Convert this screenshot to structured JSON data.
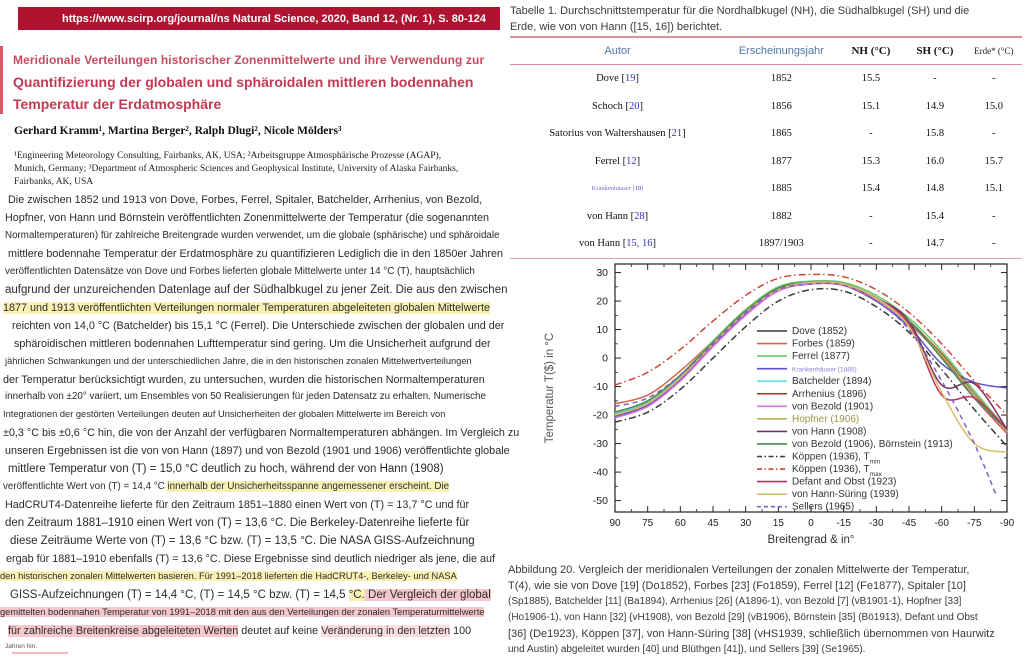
{
  "page": {
    "header": {
      "url": "https://www.scirp.org/journal/ns",
      "journal": "Natural Science, 2020, Band 12, (Nr. 1), S. 80-124"
    },
    "title_lines": [
      "Meridionale Verteilungen historischer Zonenmittelwerte und ihre Verwendung zur",
      "Quantifizierung der globalen und sphäroidalen mittleren bodennahen",
      "Temperatur der Erdatmosphäre"
    ],
    "authors": "Gerhard Kramm¹, Martina Berger², Ralph Dlugi², Nicole Mölders³",
    "affiliation_lines": [
      "¹Engineering Meteorology Consulting, Fairbanks, AK, USA; ²Arbeitsgruppe Atmosphärische Prozesse (AGAP),",
      "Munich, Germany; ³Department of Atmospheric Sciences and Geophysical Institute, University of Alaska Fairbanks,",
      "Fairbanks, AK, USA"
    ],
    "body_lines": [
      {
        "size": "m",
        "ind": 8,
        "segments": [
          {
            "t": "Die zwischen 1852 und 1913 von Dove, Forbes, Ferrel, Spitaler, Batchelder, Arrhenius, von Bezold,"
          }
        ]
      },
      {
        "size": "m",
        "ind": 5,
        "segments": [
          {
            "t": "Hopfner, von Hann und Börnstein veröffentlichten Zonenmittelwerte der Temperatur (die sogenannten"
          }
        ]
      },
      {
        "size": "s",
        "ind": 5,
        "segments": [
          {
            "t": "Normaltemperaturen) für zahlreiche Breitengrade wurden verwendet, um die globale (sphärische) und sphäroidale"
          }
        ]
      },
      {
        "size": "m",
        "ind": 8,
        "segments": [
          {
            "t": "mittlere bodennahe Temperatur der Erdatmosphäre zu quantifizieren Lediglich die in den 1850er Jahren"
          }
        ]
      },
      {
        "size": "s",
        "ind": 5,
        "segments": [
          {
            "t": "veröffentlichten Datensätze von Dove und Forbes lieferten globale Mittelwerte unter 14 °C (T), hauptsächlich"
          }
        ]
      },
      {
        "size": "l",
        "ind": 5,
        "segments": [
          {
            "t": "aufgrund der unzureichenden Datenlage auf der Südhalbkugel zu jener Zeit. Die aus den zwischen"
          }
        ]
      },
      {
        "size": "m",
        "ind": 3,
        "segments": [
          {
            "t": "1877 und 1913 veröffentlichten Verteilungen normaler Temperaturen abgeleiteten globalen Mittelwerte",
            "hl": "y"
          }
        ]
      },
      {
        "size": "m",
        "ind": 12,
        "segments": [
          {
            "t": "reichten von 14,0 °C (Batchelder) bis 15,1 °C (Ferrel). Die Unterschiede zwischen der globalen und der"
          }
        ]
      },
      {
        "size": "m",
        "ind": 14,
        "segments": [
          {
            "t": "sphäroidischen mittleren bodennahen Lufttemperatur sind gering. Um die Unsicherheit aufgrund der"
          }
        ]
      },
      {
        "size": "xs",
        "ind": 5,
        "segments": [
          {
            "t": "jährlichen Schwankungen und der unterschiedlichen Jahre, die in den historischen zonalen Mittelwertverteilungen"
          }
        ]
      },
      {
        "size": "m",
        "ind": 3,
        "segments": [
          {
            "t": "der Temperatur berücksichtigt wurden, zu untersuchen, wurden die historischen Normaltemperaturen"
          }
        ]
      },
      {
        "size": "s",
        "ind": 5,
        "segments": [
          {
            "t": "innerhalb von ±20° variiert, um Ensembles von 50 Realisierungen für jeden Datensatz zu erhalten. Numerische"
          }
        ]
      },
      {
        "size": "xs",
        "ind": 3,
        "segments": [
          {
            "t": "Integrationen der gestörten Verteilungen deuten auf Unsicherheiten der globalen Mittelwerte im Bereich von"
          }
        ]
      },
      {
        "size": "m",
        "ind": 3,
        "segments": [
          {
            "t": "±0,3 °C bis ±0,6 °C hin, die von der Anzahl der verfügbaren Normaltemperaturen abhängen. Im Vergleich zu"
          }
        ]
      },
      {
        "size": "m",
        "ind": 5,
        "segments": [
          {
            "t": "unseren Ergebnissen ist die von von Hann (1897) und von Bezold (1901 und 1906) veröffentlichte globale"
          }
        ]
      },
      {
        "size": "l",
        "ind": 8,
        "segments": [
          {
            "t": "mittlere Temperatur von (T) = 15,0 °C deutlich zu hoch, während der von Hann (1908)"
          }
        ]
      },
      {
        "size": "s",
        "ind": 3,
        "segments": [
          {
            "t": "veröffentlichte Wert von (T) = 14,4 °C "
          },
          {
            "t": "innerhalb der Unsicherheitsspanne angemessener erscheint. Die",
            "hl": "y"
          }
        ]
      },
      {
        "size": "m",
        "ind": 5,
        "segments": [
          {
            "t": "HadCRUT4-Datenreihe lieferte für den Zeitraum 1851–1880 einen Wert von (T) = 13,7 °C und für"
          }
        ]
      },
      {
        "size": "l",
        "ind": 5,
        "segments": [
          {
            "t": "den Zeitraum 1881–1910 einen Wert von (T) = 13,6 °C. Die Berkeley-Datenreihe lieferte für"
          }
        ]
      },
      {
        "size": "l",
        "ind": 10,
        "segments": [
          {
            "t": "diese Zeiträume Werte von (T) = 13,6 °C bzw. (T) = 13,5 °C. Die NASA GISS-Aufzeichnung"
          }
        ]
      },
      {
        "size": "m",
        "ind": 6,
        "segments": [
          {
            "t": "ergab für 1881–1910 ebenfalls (T) = 13,6 °C. Diese Ergebnisse sind deutlich niedriger als jene, die auf"
          }
        ]
      },
      {
        "size": "xs",
        "ind": 0,
        "segments": [
          {
            "t": "den historischen zonalen Mittelwerten basieren. Für 1991–2018 lieferten die HadCRUT4-, Berkeley- und NASA",
            "hl": "y"
          }
        ]
      },
      {
        "size": "l",
        "ind": 10,
        "segments": [
          {
            "t": "GISS-Aufzeichnungen (T) = 14,4 °C, (T) = 14,5 °C bzw. (T) = 14,5 "
          },
          {
            "t": "°C.",
            "hl": "y"
          },
          {
            "t": " Der Vergleich der global",
            "hl": "p"
          }
        ]
      },
      {
        "size": "xs",
        "ind": 0,
        "segments": [
          {
            "t": "gemittelten bodennahen Temperatur von 1991–2018 mit den aus den Verteilungen der zonalen Temperaturmittelwerte",
            "hl": "p"
          }
        ]
      },
      {
        "size": "m",
        "ind": 8,
        "segments": [
          {
            "t": "für zahlreiche Breitenkreise abgeleiteten Werten",
            "hl": "p"
          },
          {
            "t": " deutet auf keine "
          },
          {
            "t": "Veränderung in den letzten",
            "hl": "pl"
          },
          {
            "t": " 100"
          }
        ]
      },
      {
        "size": "tiny",
        "ind": 5,
        "segments": [
          {
            "t": "Jahren hin."
          }
        ]
      }
    ]
  },
  "table": {
    "caption_lines": [
      "Tabelle 1. Durchschnittstemperatur für die Nordhalbkugel (NH), die Südhalbkugel (SH) und die",
      "Erde, wie von von Hann ([15, 16]) berichtet."
    ],
    "columns": [
      "Autor",
      "Erscheinungsjahr",
      "NH (°C)",
      "SH (°C)",
      "Erde* (°C)"
    ],
    "rows": [
      {
        "name": "Dove",
        "ref": "19",
        "year": "1852",
        "nh": "15.5",
        "sh": "-",
        "earth": "-"
      },
      {
        "name": "Schoch",
        "ref": "20",
        "year": "1856",
        "nh": "15.1",
        "sh": "14.9",
        "earth": "15.0"
      },
      {
        "name": "Satorius von Waltershausen",
        "ref": "21",
        "year": "1865",
        "nh": "-",
        "sh": "15.8",
        "earth": "-"
      },
      {
        "name": "Ferrel",
        "ref": "12",
        "year": "1877",
        "nh": "15.3",
        "sh": "16.0",
        "earth": "15.7"
      },
      {
        "name": "Krankenhäuser",
        "ref": "10",
        "year": "1885",
        "nh": "15.4",
        "sh": "14.8",
        "earth": "15.1",
        "small": true
      },
      {
        "name": "von Hann",
        "ref": "28",
        "year": "1882",
        "nh": "-",
        "sh": "15.4",
        "earth": "-"
      },
      {
        "name": "von Hann",
        "ref": "15, 16",
        "year": "1897/1903",
        "nh": "-",
        "sh": "14.7",
        "earth": "-"
      }
    ]
  },
  "chart_data": {
    "type": "line",
    "title": "",
    "xlabel": "Breitengrad & in°",
    "ylabel": "Temperatur T($) in °C",
    "xlim": [
      90,
      -90
    ],
    "ylim": [
      -54,
      33
    ],
    "x_ticks": [
      90,
      75,
      60,
      45,
      30,
      15,
      0,
      -15,
      -30,
      -45,
      -60,
      -75,
      -90
    ],
    "y_ticks": [
      30,
      20,
      10,
      0,
      -10,
      -20,
      -30,
      -40,
      -50
    ],
    "grid": false,
    "legend_position": "inside-right",
    "x": [
      90,
      75,
      60,
      45,
      30,
      15,
      0,
      -15,
      -30,
      -45,
      -60,
      -75,
      -90
    ],
    "series": [
      {
        "name": "Dove (1852)",
        "color": "#3c3c3c",
        "style": "solid",
        "values": [
          -20,
          -16.5,
          -7,
          5,
          16,
          24,
          26.5,
          26,
          21,
          13,
          1,
          -13,
          -26
        ]
      },
      {
        "name": "Forbes (1859)",
        "color": "#d4614e",
        "style": "solid",
        "values": [
          -16,
          -13,
          -4.5,
          6,
          17,
          24.5,
          26.5,
          25.5,
          20,
          12,
          0.5,
          -14,
          -26.5
        ]
      },
      {
        "name": "Ferrel (1877)",
        "color": "#69c967",
        "style": "solid",
        "values": [
          -19,
          -15,
          -6,
          6,
          17,
          25,
          27,
          26.5,
          22,
          14,
          2.5,
          -11.5,
          -25
        ]
      },
      {
        "name": "Krankenhäuser (1885)",
        "color": "#5b52c7",
        "style": "solid",
        "label_style": "tiny-blue",
        "values": [
          -20.5,
          -16.5,
          -7.5,
          4.5,
          15.5,
          23.8,
          26,
          25.5,
          20,
          11,
          -2,
          -8.5,
          -10.5
        ]
      },
      {
        "name": "Batchelder (1894)",
        "color": "#63e0d5",
        "style": "solid",
        "values": [
          -19.5,
          -15.5,
          -6.5,
          5,
          16,
          24,
          26.3,
          25.8,
          20.5,
          12,
          1,
          -13,
          -25.5
        ]
      },
      {
        "name": "Arrhenius (1896)",
        "color": "#993128",
        "style": "solid",
        "values": [
          -20,
          -16,
          -7,
          5,
          16,
          24,
          26.5,
          26,
          21,
          12.5,
          1.5,
          -12.5,
          -25.5
        ]
      },
      {
        "name": "von Bezold (1901)",
        "color": "#d973e8",
        "style": "solid",
        "values": [
          -21,
          -17,
          -8,
          4,
          15,
          23.5,
          26,
          25.5,
          20.5,
          12,
          1,
          -13,
          -26
        ]
      },
      {
        "name": "Hopfner (1906)",
        "color": "#b3b050",
        "style": "solid",
        "label_style": "olive",
        "values": [
          -20,
          -16,
          -7,
          5,
          16,
          24,
          26.4,
          25.9,
          20.8,
          12.3,
          1,
          -12.8,
          -25.8
        ]
      },
      {
        "name": "von Hann (1908)",
        "color": "#7d3069",
        "style": "solid",
        "values": [
          -20,
          -16,
          -7,
          5,
          16,
          24,
          26.5,
          26,
          21,
          13,
          -9.5,
          -9,
          -25
        ]
      },
      {
        "name": "von Bezold (1906), Börnstein (1913)",
        "color": "#4e8a52",
        "style": "solid",
        "values": [
          -19,
          -15,
          -6,
          5.5,
          16.5,
          24.5,
          26.6,
          26.1,
          21.2,
          13,
          0,
          -14,
          -25
        ]
      },
      {
        "name": "Köppen (1936), T",
        "sub": "min",
        "color": "#3a3a3a",
        "style": "dashdot",
        "values": [
          -22.5,
          -19,
          -11,
          0,
          11,
          20,
          24,
          23.5,
          18,
          9,
          -4,
          -18,
          -31
        ]
      },
      {
        "name": "Köppen (1936), T",
        "sub": "max",
        "color": "#cc4438",
        "style": "dashdot",
        "values": [
          -9.5,
          -5,
          3,
          13,
          22,
          28,
          29.3,
          28.5,
          24,
          16,
          5,
          -8,
          -20
        ]
      },
      {
        "name": "Defant and Obst (1923)",
        "color": "#bb3366",
        "style": "solid",
        "values": [
          -20,
          -16,
          -7,
          5,
          16,
          24,
          26.5,
          26,
          21,
          12,
          -13,
          -14,
          -25
        ]
      },
      {
        "name": "von Hann-Süring (1939)",
        "color": "#d8c06a",
        "style": "solid",
        "values": [
          -20,
          -16,
          -7,
          5,
          16,
          24,
          26.5,
          26,
          21,
          11,
          -12,
          -30,
          -33
        ]
      },
      {
        "name": "Sellers (1965)",
        "color": "#8060b8",
        "style": "dashed",
        "x": [
          90,
          75,
          60,
          45,
          30,
          15,
          0,
          -15,
          -30,
          -45,
          -60,
          -75,
          -85
        ],
        "values": [
          -17,
          -14,
          -6,
          5,
          16,
          24,
          26,
          25.5,
          20,
          10,
          -8,
          -30,
          -48
        ]
      }
    ]
  },
  "figure_caption_lines": [
    {
      "size": "m",
      "text": "Abbildung 20. Vergleich der meridionalen Verteilungen der zonalen Mittelwerte der Temperatur,"
    },
    {
      "size": "m",
      "text": "T(4), wie sie von Dove [19] (Do1852), Forbes [23] (Fo1859), Ferrel [12] (Fe1877), Spitaler [10]"
    },
    {
      "size": "s",
      "text": "(Sp1885), Batchelder [11] (Ba1894), Arrhenius [26] (A1896-1), von Bezold [7] (vB1901-1), Hopfner [33]"
    },
    {
      "size": "s",
      "text": "(Ho1906-1), von Hann [32] (vH1908), von Bezold [29] (vB1906), Börnstein [35] (Bö1913), Defant und Obst"
    },
    {
      "size": "m",
      "text": "[36] (De1923), Köppen [37], von Hann-Süring [38] (vHS1939, schließlich übernommen von Haurwitz"
    },
    {
      "size": "s",
      "text": "und Austin) abgeleitet wurden [40] und Blüthgen [41]), und Sellers [39] (Se1965)."
    }
  ]
}
